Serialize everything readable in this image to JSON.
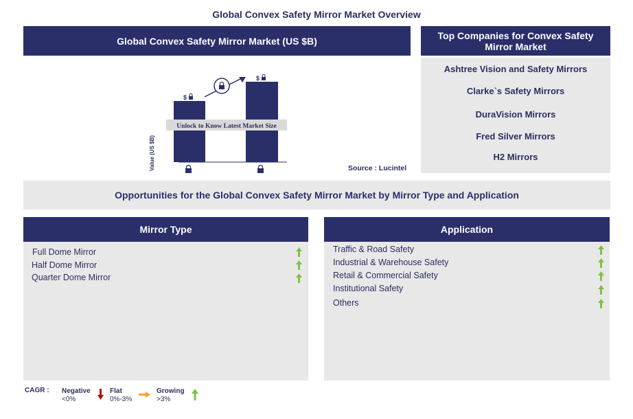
{
  "page_title": "Global Convex Safety Mirror Market Overview",
  "market_panel": {
    "header": "Global Convex Safety Mirror Market (US $B)",
    "source": "Source : Lucintel",
    "unlock_banner": "Unlock to Know Latest Market Size"
  },
  "chart_data": {
    "type": "bar",
    "ylabel": "Value (US $B)",
    "categories": [
      "",
      ""
    ],
    "values": [
      null,
      null
    ],
    "value_labels": [
      "$",
      "$"
    ],
    "note": "Values locked",
    "bar_color": "#2a2f6a"
  },
  "companies": {
    "header": "Top Companies for Convex Safety Mirror Market",
    "items": [
      "Ashtree Vision and Safety Mirrors",
      "Clarke`s Safety Mirrors",
      "DuraVision Mirrors",
      "Fred Silver Mirrors",
      "H2 Mirrors"
    ]
  },
  "opportunities_title": "Opportunities for the Global Convex Safety Mirror Market by Mirror Type and Application",
  "mirror_type": {
    "header": "Mirror Type",
    "items": [
      "Full Dome Mirror",
      "Half Dome Mirror",
      "Quarter Dome Mirror"
    ]
  },
  "application": {
    "header": "Application",
    "items": [
      "Traffic & Road Safety",
      "Industrial & Warehouse Safety",
      "Retail & Commercial Safety",
      "Institutional Safety",
      "Others"
    ]
  },
  "legend": {
    "cagr": "CAGR :",
    "negative": "Negative",
    "negative_range": "<0%",
    "flat": "Flat",
    "flat_range": "0%-3%",
    "growing": "Growing",
    "growing_range": ">3%"
  },
  "colors": {
    "navy": "#2a2f6a",
    "panel_grey": "#e8e8e8",
    "growing_green": "#7dc242",
    "negative_red": "#c00000",
    "flat_orange": "#f5a623"
  }
}
